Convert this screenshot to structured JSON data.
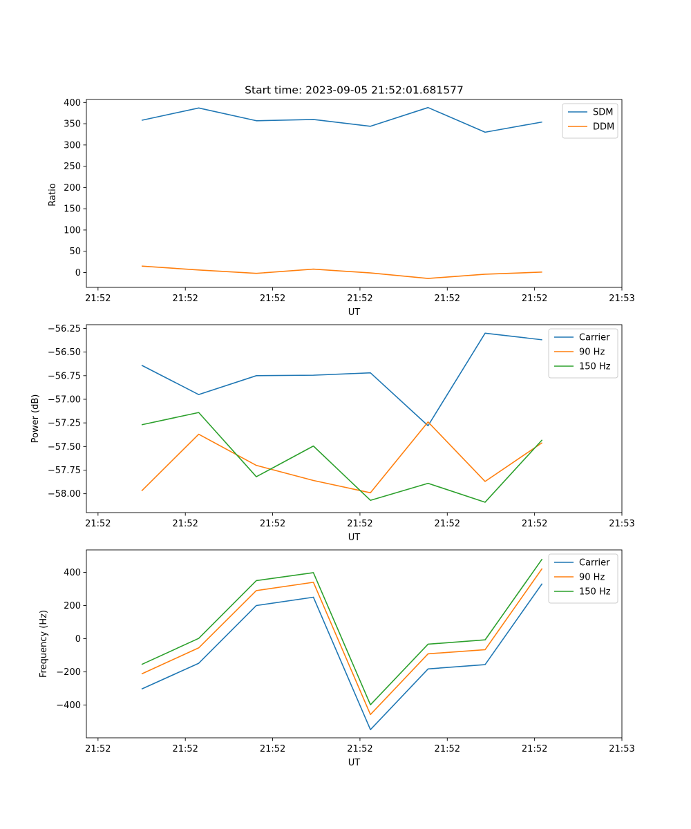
{
  "chart_data": [
    {
      "type": "line",
      "title": "Start time: 2023-09-05 21:52:01.681577",
      "xlabel": "UT",
      "ylabel": "Ratio",
      "xlim": [
        -0.2,
        9.0
      ],
      "ylim": [
        -35,
        407
      ],
      "xticks": [
        0,
        1.5,
        3,
        4.5,
        6,
        7.5,
        9
      ],
      "xtick_labels": [
        "21:52",
        "21:52",
        "21:52",
        "21:52",
        "21:52",
        "21:52",
        "21:53"
      ],
      "yticks": [
        0,
        50,
        100,
        150,
        200,
        250,
        300,
        350,
        400
      ],
      "ytick_labels": [
        "0",
        "50",
        "100",
        "150",
        "200",
        "250",
        "300",
        "350",
        "400"
      ],
      "legend": "top-right",
      "x": [
        0.75,
        1.73,
        2.72,
        3.7,
        4.68,
        5.67,
        6.65,
        7.63
      ],
      "series": [
        {
          "name": "SDM",
          "color": "#1f77b4",
          "values": [
            358,
            387,
            357,
            360,
            344,
            388,
            330,
            354
          ]
        },
        {
          "name": "DDM",
          "color": "#ff7f0e",
          "values": [
            15,
            6,
            -2,
            8,
            -1,
            -14,
            -4,
            1
          ]
        }
      ]
    },
    {
      "type": "line",
      "title": "",
      "xlabel": "UT",
      "ylabel": "Power (dB)",
      "xlim": [
        -0.2,
        9.0
      ],
      "ylim": [
        -58.2,
        -56.21
      ],
      "xticks": [
        0,
        1.5,
        3,
        4.5,
        6,
        7.5,
        9
      ],
      "xtick_labels": [
        "21:52",
        "21:52",
        "21:52",
        "21:52",
        "21:52",
        "21:52",
        "21:53"
      ],
      "yticks": [
        -58.0,
        -57.75,
        -57.5,
        -57.25,
        -57.0,
        -56.75,
        -56.5,
        -56.25
      ],
      "ytick_labels": [
        "−58.00",
        "−57.75",
        "−57.50",
        "−57.25",
        "−57.00",
        "−56.75",
        "−56.50",
        "−56.25"
      ],
      "legend": "top-right",
      "x": [
        0.75,
        1.73,
        2.72,
        3.7,
        4.68,
        5.67,
        6.65,
        7.63
      ],
      "series": [
        {
          "name": "Carrier",
          "color": "#1f77b4",
          "values": [
            -56.64,
            -56.95,
            -56.75,
            -56.745,
            -56.72,
            -57.28,
            -56.3,
            -56.37
          ]
        },
        {
          "name": "90 Hz",
          "color": "#ff7f0e",
          "values": [
            -57.97,
            -57.37,
            -57.7,
            -57.86,
            -57.99,
            -57.24,
            -57.87,
            -57.46
          ]
        },
        {
          "name": "150 Hz",
          "color": "#2ca02c",
          "values": [
            -57.27,
            -57.14,
            -57.82,
            -57.495,
            -58.07,
            -57.89,
            -58.09,
            -57.43
          ]
        }
      ]
    },
    {
      "type": "line",
      "title": "",
      "xlabel": "UT",
      "ylabel": "Frequency (Hz)",
      "xlim": [
        -0.2,
        9.0
      ],
      "ylim": [
        -597,
        535
      ],
      "xticks": [
        0,
        1.5,
        3,
        4.5,
        6,
        7.5,
        9
      ],
      "xtick_labels": [
        "21:52",
        "21:52",
        "21:52",
        "21:52",
        "21:52",
        "21:52",
        "21:53"
      ],
      "yticks": [
        -400,
        -200,
        0,
        200,
        400
      ],
      "ytick_labels": [
        "−400",
        "−200",
        "0",
        "200",
        "400"
      ],
      "legend": "top-right",
      "x": [
        0.75,
        1.73,
        2.72,
        3.7,
        4.68,
        5.67,
        6.65,
        7.63
      ],
      "series": [
        {
          "name": "Carrier",
          "color": "#1f77b4",
          "values": [
            -303,
            -148,
            200,
            250,
            -548,
            -182,
            -156,
            332
          ]
        },
        {
          "name": "90 Hz",
          "color": "#ff7f0e",
          "values": [
            -212,
            -55,
            290,
            340,
            -457,
            -91,
            -66,
            423
          ]
        },
        {
          "name": "150 Hz",
          "color": "#2ca02c",
          "values": [
            -155,
            2,
            350,
            398,
            -398,
            -33,
            -7,
            480
          ]
        }
      ]
    }
  ]
}
